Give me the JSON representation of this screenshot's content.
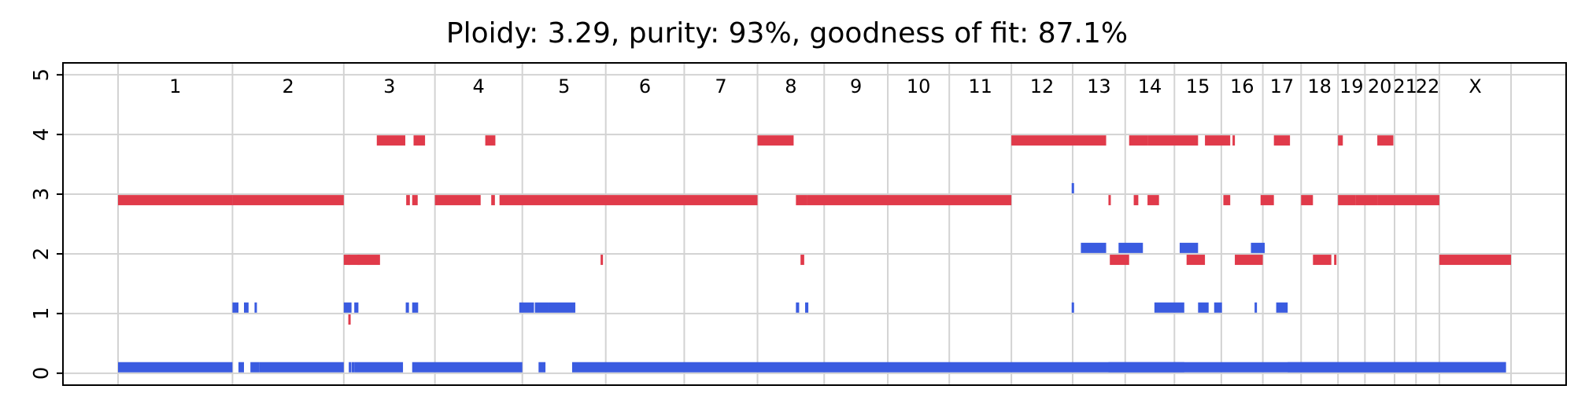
{
  "chart_data": {
    "type": "segments",
    "title": "Ploidy: 3.29, purity: 93%, goodness of fit: 87.1%",
    "ylim": [
      -0.2,
      5.2
    ],
    "y_ticks": [
      0,
      1,
      2,
      3,
      4,
      5
    ],
    "grid": true,
    "chromosomes": [
      "1",
      "2",
      "3",
      "4",
      "5",
      "6",
      "7",
      "8",
      "9",
      "10",
      "11",
      "12",
      "13",
      "14",
      "15",
      "16",
      "17",
      "18",
      "19",
      "20",
      "21",
      "22",
      "X"
    ],
    "chromosome_bounds": [
      0,
      249.0,
      491.2,
      689.5,
      879.7,
      1061.2,
      1232.0,
      1391.4,
      1536.5,
      1674.9,
      1808.7,
      1943.8,
      2077.1,
      2191.5,
      2298.6,
      2400.6,
      2490.9,
      2574.2,
      2654.5,
      2713.1,
      2777.5,
      2824.2,
      2875.0,
      3031.0
    ],
    "series": [
      {
        "name": "major",
        "color": "#e03a4a",
        "segments": [
          [
            0.0,
            249.0,
            2.9
          ],
          [
            249.0,
            491.2,
            2.9
          ],
          [
            491.2,
            501.0,
            1.9
          ],
          [
            501.0,
            570.0,
            1.9
          ],
          [
            500.0,
            504.0,
            1.9
          ],
          [
            501.0,
            505.0,
            0.9
          ],
          [
            521.0,
            524.0,
            1.9
          ],
          [
            563.0,
            625.0,
            3.9
          ],
          [
            627.0,
            635.0,
            2.9
          ],
          [
            640.0,
            652.0,
            2.9
          ],
          [
            643.0,
            668.0,
            3.9
          ],
          [
            689.5,
            789.0,
            2.9
          ],
          [
            799.0,
            821.0,
            3.9
          ],
          [
            812.0,
            820.0,
            2.9
          ],
          [
            830.0,
            1391.4,
            2.9
          ],
          [
            1050.0,
            1054.0,
            1.9
          ],
          [
            1391.4,
            1470.0,
            3.9
          ],
          [
            1475.0,
            1500.0,
            2.9
          ],
          [
            1485.0,
            1493.0,
            1.9
          ],
          [
            1500.0,
            1943.8,
            2.9
          ],
          [
            1943.8,
            2150.0,
            3.9
          ],
          [
            2155.0,
            2158.0,
            2.9
          ],
          [
            2158.0,
            2200.0,
            1.9
          ],
          [
            2200.0,
            2240.0,
            3.9
          ],
          [
            2210.0,
            2220.0,
            2.9
          ],
          [
            2240.0,
            2265.0,
            2.9
          ],
          [
            2240.0,
            2350.0,
            3.9
          ],
          [
            2325.0,
            2365.0,
            1.9
          ],
          [
            2365.0,
            2420.0,
            3.9
          ],
          [
            2405.0,
            2420.0,
            2.9
          ],
          [
            2425.0,
            2430.0,
            3.9
          ],
          [
            2430.0,
            2490.9,
            1.9
          ],
          [
            2486.0,
            2515.0,
            2.9
          ],
          [
            2515.0,
            2550.0,
            3.9
          ],
          [
            2574.2,
            2600.0,
            2.9
          ],
          [
            2600.0,
            2640.0,
            1.9
          ],
          [
            2646.0,
            2650.0,
            1.9
          ],
          [
            2654.5,
            2665.0,
            3.9
          ],
          [
            2654.5,
            2693.0,
            2.9
          ],
          [
            2693.0,
            2740.0,
            2.9
          ],
          [
            2740.0,
            2775.0,
            3.9
          ],
          [
            2740.0,
            2875.0,
            2.9
          ],
          [
            2875.0,
            3031.0,
            1.9
          ]
        ]
      },
      {
        "name": "minor",
        "color": "#3a5be0",
        "segments": [
          [
            0.0,
            249.0,
            0.1
          ],
          [
            249.0,
            262.0,
            1.1
          ],
          [
            262.0,
            274.0,
            0.1
          ],
          [
            274.0,
            284.0,
            1.1
          ],
          [
            288.0,
            308.0,
            0.1
          ],
          [
            297.0,
            302.0,
            1.1
          ],
          [
            308.0,
            491.2,
            0.1
          ],
          [
            491.2,
            508.0,
            1.1
          ],
          [
            502.0,
            505.0,
            0.1
          ],
          [
            508.0,
            514.0,
            0.1
          ],
          [
            514.0,
            523.0,
            1.1
          ],
          [
            514.0,
            620.0,
            0.1
          ],
          [
            626.0,
            633.0,
            1.1
          ],
          [
            640.0,
            653.0,
            1.1
          ],
          [
            640.0,
            879.7,
            0.1
          ],
          [
            873.0,
            905.0,
            1.1
          ],
          [
            907.0,
            935.0,
            1.1
          ],
          [
            915.0,
            930.0,
            0.1
          ],
          [
            935.0,
            995.0,
            1.1
          ],
          [
            988.0,
            3020.0,
            0.1
          ],
          [
            1475.0,
            1482.0,
            1.1
          ],
          [
            1495.0,
            1502.0,
            1.1
          ],
          [
            2075.0,
            2078.0,
            3.1
          ],
          [
            2075.0,
            2078.0,
            1.1
          ],
          [
            2095.0,
            2150.0,
            2.1
          ],
          [
            2177.0,
            2230.0,
            2.1
          ],
          [
            2310.0,
            2350.0,
            2.1
          ],
          [
            2155.0,
            2320.0,
            0.1
          ],
          [
            2255.0,
            2320.0,
            1.1
          ],
          [
            2350.0,
            2373.0,
            1.1
          ],
          [
            2385.0,
            2402.0,
            1.1
          ],
          [
            2465.0,
            2495.0,
            2.1
          ],
          [
            2473.0,
            2477.0,
            1.1
          ],
          [
            2520.0,
            2545.0,
            1.1
          ],
          [
            2545.0,
            3020.0,
            0.1
          ]
        ]
      }
    ]
  }
}
